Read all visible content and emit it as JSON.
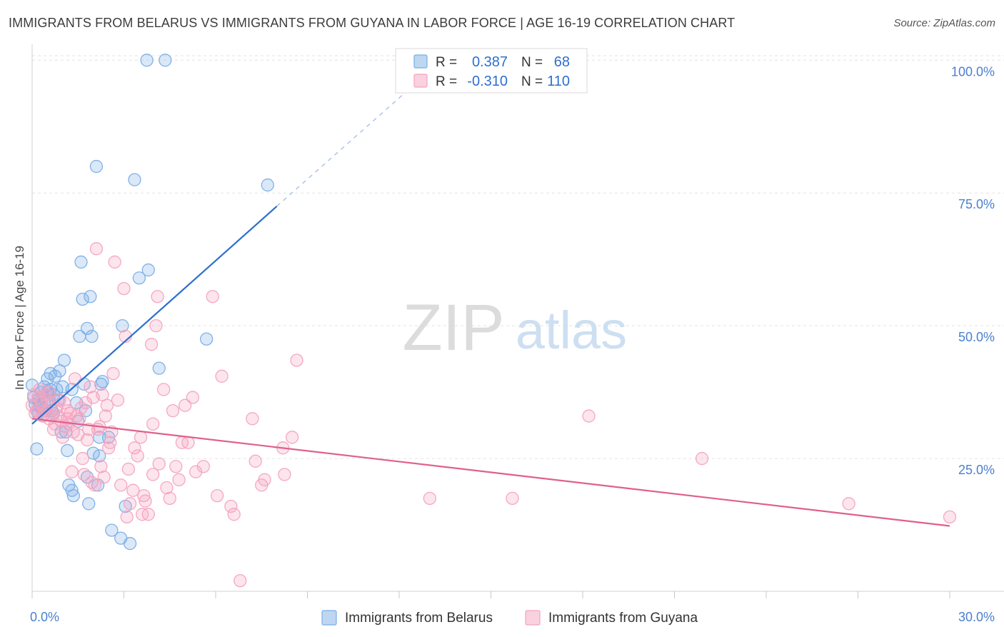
{
  "chart_data": {
    "type": "scatter",
    "title": "IMMIGRANTS FROM BELARUS VS IMMIGRANTS FROM GUYANA IN LABOR FORCE | AGE 16-19 CORRELATION CHART",
    "source": "Source: ZipAtlas.com",
    "ylabel": "In Labor Force | Age 16-19",
    "xlabel": "",
    "xlim": [
      0,
      30
    ],
    "ylim": [
      0,
      103
    ],
    "x_tick_labels": [
      "0.0%",
      "30.0%"
    ],
    "y_ticks": [
      25,
      50,
      75,
      100
    ],
    "y_tick_labels": [
      "25.0%",
      "50.0%",
      "75.0%",
      "100.0%"
    ],
    "grid": true,
    "watermark": "ZIPatlas",
    "legend_stats": {
      "r_label": "R =",
      "n_label": "N =",
      "rows": [
        {
          "r": "0.387",
          "n": "68"
        },
        {
          "r": "-0.310",
          "n": "110"
        }
      ]
    },
    "series": [
      {
        "name": "Immigrants from Belarus",
        "color": "#7baee6",
        "line_color": "#2e6fcf",
        "r": 0.387,
        "n": 68,
        "trend": {
          "x0": 0.0,
          "y0": 31.5,
          "x1": 8.0,
          "y1": 72.5,
          "dash_x1": 13.0,
          "dash_y1": 98.0
        },
        "points": [
          [
            0.0,
            38.8
          ],
          [
            0.05,
            36.5
          ],
          [
            0.1,
            35.2
          ],
          [
            0.15,
            34.0
          ],
          [
            0.2,
            36.0
          ],
          [
            0.2,
            33.5
          ],
          [
            0.25,
            35.0
          ],
          [
            0.3,
            37.5
          ],
          [
            0.3,
            34.5
          ],
          [
            0.35,
            33.0
          ],
          [
            0.4,
            38.5
          ],
          [
            0.4,
            35.5
          ],
          [
            0.45,
            34.0
          ],
          [
            0.5,
            40.0
          ],
          [
            0.5,
            37.5
          ],
          [
            0.55,
            36.0
          ],
          [
            0.6,
            38.0
          ],
          [
            0.65,
            34.0
          ],
          [
            0.7,
            37.0
          ],
          [
            0.7,
            33.5
          ],
          [
            0.75,
            40.5
          ],
          [
            0.8,
            38.0
          ],
          [
            0.85,
            36.0
          ],
          [
            0.9,
            41.5
          ],
          [
            0.95,
            30.0
          ],
          [
            1.0,
            38.5
          ],
          [
            1.05,
            43.5
          ],
          [
            1.1,
            30.0
          ],
          [
            1.15,
            26.5
          ],
          [
            1.2,
            20.0
          ],
          [
            1.3,
            19.0
          ],
          [
            1.35,
            18.0
          ],
          [
            1.45,
            35.5
          ],
          [
            1.5,
            32.0
          ],
          [
            1.55,
            48.0
          ],
          [
            1.6,
            62.0
          ],
          [
            1.65,
            55.0
          ],
          [
            1.7,
            39.0
          ],
          [
            1.75,
            34.0
          ],
          [
            1.8,
            49.5
          ],
          [
            1.8,
            21.5
          ],
          [
            1.85,
            16.5
          ],
          [
            1.9,
            55.5
          ],
          [
            1.95,
            48.0
          ],
          [
            2.0,
            26.0
          ],
          [
            2.1,
            80.0
          ],
          [
            2.15,
            20.0
          ],
          [
            2.2,
            29.0
          ],
          [
            2.2,
            25.5
          ],
          [
            2.25,
            39.0
          ],
          [
            2.3,
            39.5
          ],
          [
            2.5,
            29.0
          ],
          [
            2.6,
            11.5
          ],
          [
            2.9,
            10.0
          ],
          [
            2.95,
            50.0
          ],
          [
            3.05,
            16.0
          ],
          [
            3.2,
            9.0
          ],
          [
            3.35,
            77.5
          ],
          [
            3.5,
            59.0
          ],
          [
            3.8,
            60.5
          ],
          [
            3.75,
            100.0
          ],
          [
            4.15,
            42.0
          ],
          [
            4.35,
            100.0
          ],
          [
            5.7,
            47.5
          ],
          [
            7.7,
            76.5
          ],
          [
            0.15,
            26.8
          ],
          [
            0.6,
            41.0
          ],
          [
            1.3,
            38.0
          ]
        ]
      },
      {
        "name": "Immigrants from Guyana",
        "color": "#f4a3bf",
        "line_color": "#e0608a",
        "r": -0.31,
        "n": 110,
        "trend": {
          "x0": 0.0,
          "y0": 32.5,
          "x1": 30.0,
          "y1": 12.3
        },
        "points": [
          [
            0.0,
            35.0
          ],
          [
            0.05,
            37.0
          ],
          [
            0.1,
            33.5
          ],
          [
            0.15,
            34.0
          ],
          [
            0.2,
            36.5
          ],
          [
            0.25,
            38.0
          ],
          [
            0.3,
            35.5
          ],
          [
            0.35,
            33.0
          ],
          [
            0.4,
            34.0
          ],
          [
            0.45,
            37.0
          ],
          [
            0.5,
            36.0
          ],
          [
            0.55,
            32.5
          ],
          [
            0.6,
            35.0
          ],
          [
            0.65,
            33.0
          ],
          [
            0.7,
            30.5
          ],
          [
            0.75,
            31.5
          ],
          [
            0.8,
            34.5
          ],
          [
            0.85,
            33.0
          ],
          [
            0.9,
            36.0
          ],
          [
            0.95,
            32.0
          ],
          [
            1.0,
            29.0
          ],
          [
            1.05,
            35.5
          ],
          [
            1.1,
            31.0
          ],
          [
            1.15,
            34.0
          ],
          [
            1.2,
            31.5
          ],
          [
            1.25,
            33.5
          ],
          [
            1.3,
            22.5
          ],
          [
            1.35,
            30.0
          ],
          [
            1.4,
            40.0
          ],
          [
            1.45,
            33.0
          ],
          [
            1.5,
            29.5
          ],
          [
            1.55,
            32.5
          ],
          [
            1.6,
            34.5
          ],
          [
            1.65,
            25.0
          ],
          [
            1.7,
            22.0
          ],
          [
            1.75,
            35.5
          ],
          [
            1.8,
            28.5
          ],
          [
            1.85,
            30.5
          ],
          [
            1.9,
            38.5
          ],
          [
            1.95,
            20.5
          ],
          [
            2.0,
            36.5
          ],
          [
            2.05,
            20.0
          ],
          [
            2.1,
            64.5
          ],
          [
            2.15,
            30.5
          ],
          [
            2.2,
            31.0
          ],
          [
            2.25,
            23.5
          ],
          [
            2.3,
            37.0
          ],
          [
            2.35,
            21.5
          ],
          [
            2.4,
            33.0
          ],
          [
            2.45,
            35.0
          ],
          [
            2.5,
            27.0
          ],
          [
            2.55,
            28.0
          ],
          [
            2.6,
            30.0
          ],
          [
            2.65,
            41.0
          ],
          [
            2.7,
            62.0
          ],
          [
            2.8,
            36.0
          ],
          [
            2.9,
            20.0
          ],
          [
            3.0,
            57.0
          ],
          [
            3.05,
            48.0
          ],
          [
            3.1,
            14.0
          ],
          [
            3.15,
            23.0
          ],
          [
            3.2,
            16.5
          ],
          [
            3.3,
            19.0
          ],
          [
            3.35,
            27.0
          ],
          [
            3.45,
            25.5
          ],
          [
            3.55,
            29.0
          ],
          [
            3.6,
            14.5
          ],
          [
            3.65,
            18.0
          ],
          [
            3.7,
            17.0
          ],
          [
            3.8,
            14.5
          ],
          [
            3.9,
            46.5
          ],
          [
            3.95,
            22.0
          ],
          [
            4.05,
            50.0
          ],
          [
            4.1,
            55.5
          ],
          [
            4.15,
            24.0
          ],
          [
            4.3,
            38.0
          ],
          [
            4.4,
            19.5
          ],
          [
            4.5,
            17.5
          ],
          [
            4.6,
            34.0
          ],
          [
            4.7,
            23.5
          ],
          [
            4.8,
            21.0
          ],
          [
            4.9,
            28.0
          ],
          [
            5.0,
            35.0
          ],
          [
            5.1,
            28.0
          ],
          [
            5.25,
            36.5
          ],
          [
            5.35,
            22.5
          ],
          [
            5.6,
            23.5
          ],
          [
            5.9,
            55.5
          ],
          [
            6.05,
            18.0
          ],
          [
            6.2,
            40.5
          ],
          [
            6.5,
            16.0
          ],
          [
            6.6,
            14.5
          ],
          [
            6.8,
            2.0
          ],
          [
            7.2,
            32.5
          ],
          [
            7.3,
            24.5
          ],
          [
            7.5,
            20.0
          ],
          [
            7.6,
            21.0
          ],
          [
            8.2,
            27.0
          ],
          [
            8.25,
            22.0
          ],
          [
            8.5,
            29.0
          ],
          [
            8.65,
            43.5
          ],
          [
            13.0,
            17.5
          ],
          [
            15.7,
            17.5
          ],
          [
            18.2,
            33.0
          ],
          [
            21.9,
            25.0
          ],
          [
            26.7,
            16.5
          ],
          [
            30.0,
            14.0
          ],
          [
            3.95,
            31.5
          ],
          [
            0.55,
            37.5
          ],
          [
            1.15,
            32.5
          ]
        ]
      }
    ]
  }
}
